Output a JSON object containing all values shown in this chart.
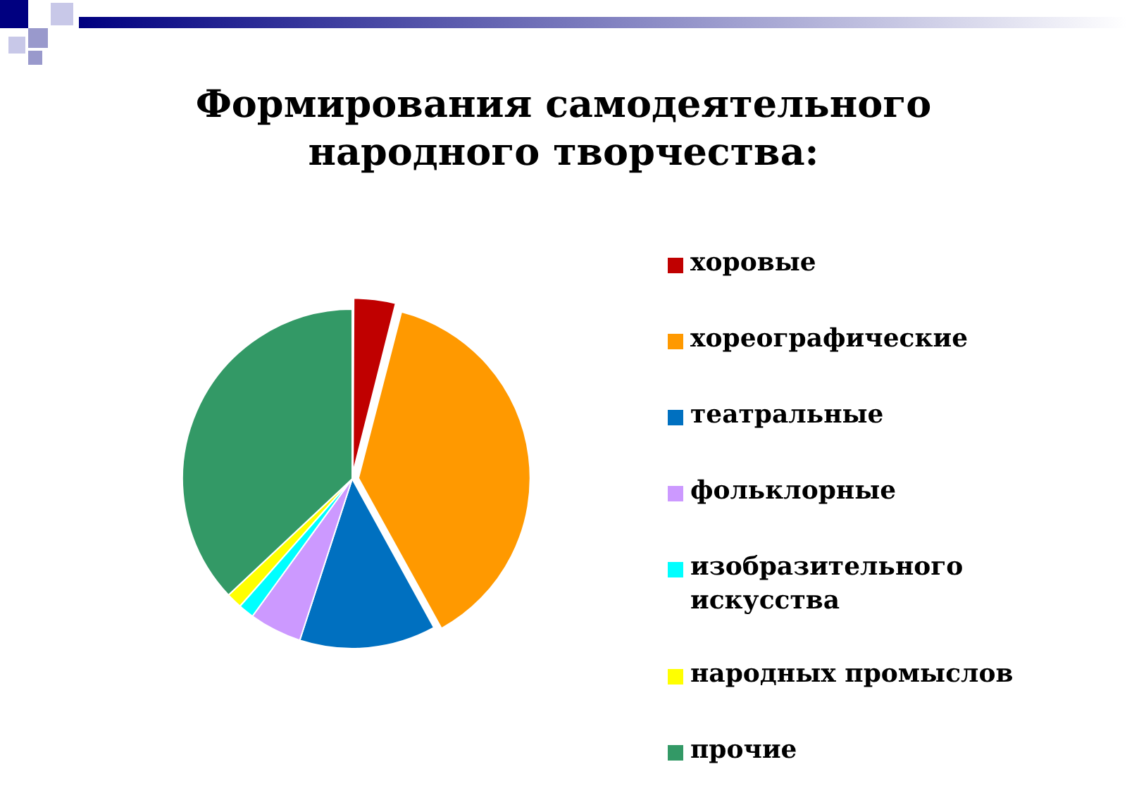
{
  "chart_data": {
    "type": "pie",
    "title": "Формирования самодеятельного народного творчества:",
    "categories": [
      "хоровые",
      "хореографические",
      "театральные",
      "фольклорные",
      "изобразительного искусства",
      "народных промыслов",
      "прочие"
    ],
    "values": [
      4,
      38,
      13,
      5,
      1.5,
      1.5,
      37
    ],
    "colors": [
      "#c00000",
      "#ff9900",
      "#0070c0",
      "#cc99ff",
      "#00ffff",
      "#ffff00",
      "#339966"
    ],
    "legend": "right"
  }
}
